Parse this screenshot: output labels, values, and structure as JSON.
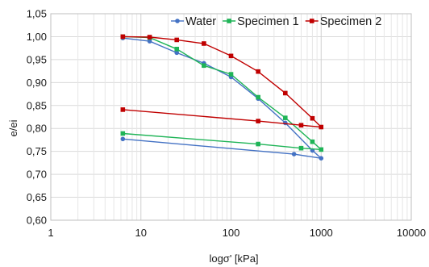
{
  "chart_data": {
    "type": "line",
    "xlabel": "logσ' [kPa]",
    "ylabel": "e/ei",
    "xscale": "log",
    "xlim": [
      1,
      10000
    ],
    "ylim": [
      0.6,
      1.05
    ],
    "x_ticks": [
      1,
      10,
      100,
      1000,
      10000
    ],
    "x_tick_labels": [
      "1",
      "10",
      "100",
      "1000",
      "10000"
    ],
    "y_ticks": [
      0.6,
      0.65,
      0.7,
      0.75,
      0.8,
      0.85,
      0.9,
      0.95,
      1.0,
      1.05
    ],
    "y_tick_labels": [
      "0,60",
      "0,65",
      "0,70",
      "0,75",
      "0,80",
      "0,85",
      "0,90",
      "0,95",
      "1,00",
      "1,05"
    ],
    "grid": "on (major and minor vertical, major horizontal)",
    "legend_position": "top-right",
    "series": [
      {
        "name": "Water",
        "color": "#4472c4",
        "marker": "circle",
        "x": [
          6.3,
          12.5,
          25,
          50,
          100,
          200,
          400,
          800,
          1000,
          500,
          6.3
        ],
        "y": [
          0.997,
          0.99,
          0.965,
          0.942,
          0.912,
          0.865,
          0.812,
          0.752,
          0.735,
          0.744,
          0.777
        ]
      },
      {
        "name": "Specimen 1",
        "color": "#1fb457",
        "marker": "square",
        "x": [
          6.3,
          12.5,
          25,
          50,
          100,
          200,
          400,
          800,
          1000,
          600,
          200,
          6.3
        ],
        "y": [
          1.0,
          0.998,
          0.973,
          0.937,
          0.918,
          0.868,
          0.823,
          0.771,
          0.754,
          0.757,
          0.766,
          0.789
        ]
      },
      {
        "name": "Specimen 2",
        "color": "#c00000",
        "marker": "square",
        "x": [
          6.3,
          12.5,
          25,
          50,
          100,
          200,
          400,
          800,
          1000,
          600,
          200,
          6.3
        ],
        "y": [
          1.0,
          0.999,
          0.993,
          0.985,
          0.958,
          0.924,
          0.877,
          0.822,
          0.803,
          0.807,
          0.816,
          0.841
        ]
      }
    ]
  }
}
